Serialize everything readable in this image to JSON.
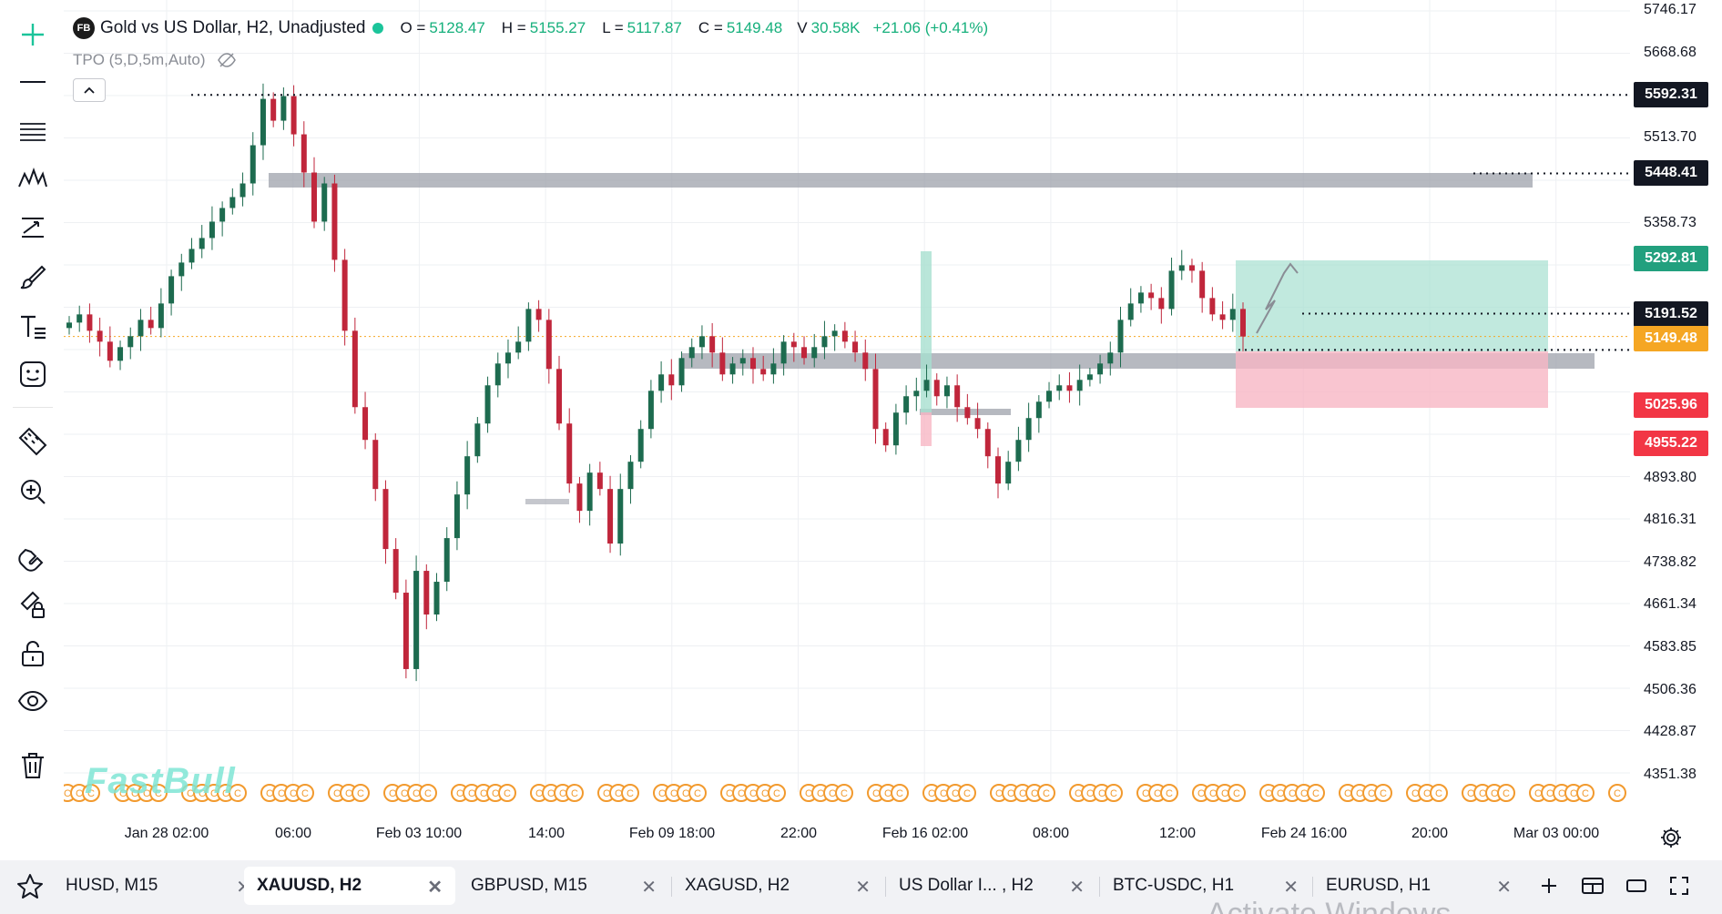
{
  "symbol": {
    "logo": "FB",
    "title": "Gold vs US Dollar, H2, Unadjusted",
    "ohlc": [
      {
        "key": "O =",
        "value": "5128.47"
      },
      {
        "key": "H =",
        "value": "5155.27"
      },
      {
        "key": "L =",
        "value": "5117.87"
      },
      {
        "key": "C =",
        "value": "5149.48"
      },
      {
        "key": "V",
        "value": "30.58K"
      }
    ],
    "change": "+21.06 (+0.41%)",
    "indicator": "TPO (5,D,5m,Auto)"
  },
  "watermark": "FastBull",
  "price_axis": {
    "ticks": [
      "5746.17",
      "5668.68",
      "5513.70",
      "5358.73",
      "4893.80",
      "4816.31",
      "4738.82",
      "4661.34",
      "4583.85",
      "4506.36",
      "4428.87",
      "4351.38"
    ],
    "badges": [
      {
        "label": "5592.31",
        "color": "#131722"
      },
      {
        "label": "5448.41",
        "color": "#131722"
      },
      {
        "label": "5292.81",
        "color": "#22a07e"
      },
      {
        "label": "5191.52",
        "color": "#131722"
      },
      {
        "label": "5149.48",
        "color": "#f5a623"
      },
      {
        "label": "5025.96",
        "color": "#f23645"
      },
      {
        "label": "4955.22",
        "color": "#f23645"
      }
    ]
  },
  "time_axis": [
    "Jan 28 02:00",
    "06:00",
    "Feb 03 10:00",
    "14:00",
    "Feb 09 18:00",
    "22:00",
    "Feb 16 02:00",
    "08:00",
    "12:00",
    "Feb 24 16:00",
    "20:00",
    "Mar 03 00:00"
  ],
  "tabs": [
    {
      "label": "HUSD, M15",
      "active": false
    },
    {
      "label": "XAUUSD, H2",
      "active": true
    },
    {
      "label": "GBPUSD, M15",
      "active": false
    },
    {
      "label": "XAGUSD, H2",
      "active": false
    },
    {
      "label": "US Dollar I... , H2",
      "active": false
    },
    {
      "label": "BTC-USDC, H1",
      "active": false
    },
    {
      "label": "EURUSD, H1",
      "active": false
    }
  ],
  "tab_close_glyph": "✕",
  "os_watermark": "Activate Windows",
  "colors": {
    "up": "#1d6b4f",
    "down": "#c0263b",
    "accent": "#1bc49a",
    "last_price": "#f5a623"
  },
  "chart_data": {
    "type": "candlestick",
    "symbol": "XAUUSD",
    "interval": "H2",
    "ylim": [
      4351.38,
      5746.17
    ],
    "closes": [
      5175,
      5190,
      5160,
      5140,
      5105,
      5130,
      5150,
      5180,
      5165,
      5210,
      5260,
      5285,
      5310,
      5330,
      5360,
      5385,
      5405,
      5430,
      5500,
      5585,
      5545,
      5590,
      5520,
      5450,
      5360,
      5430,
      5290,
      5160,
      5020,
      4960,
      4870,
      4760,
      4680,
      4540,
      4720,
      4640,
      4700,
      4780,
      4860,
      4930,
      4990,
      5060,
      5100,
      5120,
      5140,
      5200,
      5180,
      5090,
      4990,
      4880,
      4830,
      4900,
      4870,
      4770,
      4870,
      4920,
      4980,
      5050,
      5080,
      5060,
      5110,
      5130,
      5150,
      5120,
      5080,
      5100,
      5110,
      5090,
      5080,
      5100,
      5140,
      5130,
      5110,
      5130,
      5150,
      5160,
      5140,
      5120,
      5090,
      4980,
      4950,
      5010,
      5040,
      5050,
      5070,
      5040,
      5060,
      5020,
      5000,
      4980,
      4930,
      4880,
      4920,
      4960,
      5000,
      5030,
      5050,
      5060,
      5050,
      5070,
      5080,
      5100,
      5120,
      5180,
      5210,
      5230,
      5220,
      5200,
      5270,
      5280,
      5270,
      5220,
      5190,
      5180,
      5200,
      5149.48
    ],
    "levels": [
      5592.31,
      5448.41,
      5191.52,
      5149.48
    ],
    "position": {
      "entry": 5149.48,
      "target": 5292.81,
      "stop": 5025.96
    }
  }
}
